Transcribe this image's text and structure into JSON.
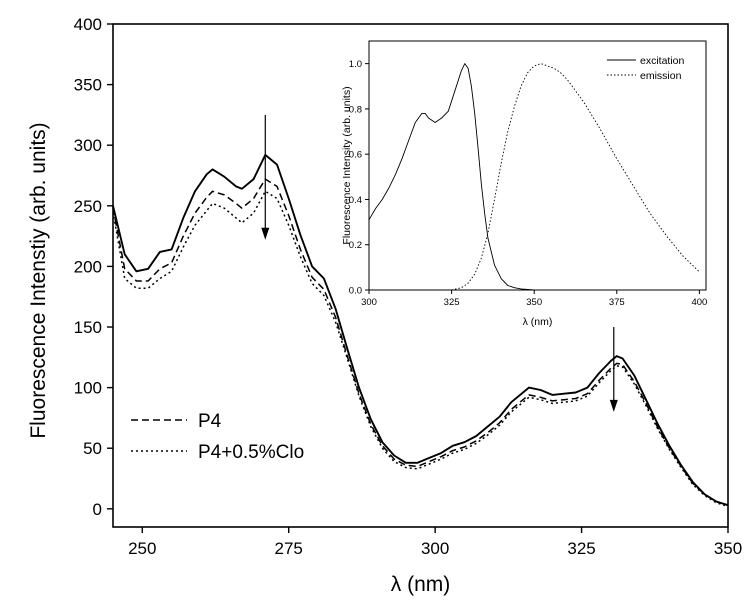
{
  "chart_data": [
    {
      "type": "line",
      "title": "",
      "xlabel": "λ (nm)",
      "ylabel": "Fluorescence Intenstiy (arb. units)",
      "xlim": [
        245,
        350
      ],
      "ylim": [
        -15,
        400
      ],
      "xticks": [
        250,
        275,
        300,
        325,
        350
      ],
      "yticks": [
        0,
        50,
        100,
        150,
        200,
        250,
        300,
        350,
        400
      ],
      "grid": false,
      "legend_position": "lower-left",
      "x": [
        245,
        247,
        249,
        251,
        253,
        255,
        257,
        259,
        261,
        262,
        264,
        266,
        267,
        269,
        271,
        273,
        275,
        277,
        279,
        281,
        283,
        285,
        287,
        289,
        291,
        293,
        295,
        297,
        299,
        301,
        303,
        305,
        307,
        309,
        311,
        313,
        315,
        316,
        318,
        320,
        322,
        324,
        326,
        328,
        330,
        331,
        332,
        334,
        336,
        338,
        340,
        342,
        344,
        346,
        348,
        350
      ],
      "series": [
        {
          "name": "",
          "style": "solid",
          "values": [
            250,
            210,
            196,
            198,
            212,
            214,
            240,
            262,
            276,
            280,
            274,
            266,
            264,
            272,
            292,
            284,
            256,
            226,
            200,
            190,
            165,
            132,
            100,
            74,
            55,
            44,
            38,
            38,
            42,
            46,
            52,
            55,
            60,
            68,
            76,
            88,
            96,
            100,
            98,
            94,
            95,
            96,
            100,
            112,
            122,
            126,
            124,
            110,
            90,
            70,
            52,
            36,
            22,
            12,
            6,
            3
          ]
        },
        {
          "name": "P4",
          "style": "dashed",
          "values": [
            248,
            198,
            188,
            188,
            198,
            203,
            225,
            244,
            257,
            262,
            259,
            252,
            248,
            256,
            272,
            266,
            242,
            214,
            191,
            181,
            158,
            126,
            95,
            70,
            52,
            41,
            36,
            35,
            39,
            43,
            48,
            51,
            56,
            63,
            71,
            82,
            90,
            94,
            92,
            89,
            90,
            91,
            95,
            106,
            116,
            120,
            119,
            105,
            87,
            67,
            50,
            35,
            21,
            12,
            6,
            3
          ]
        },
        {
          "name": "P4+0.5%Clo",
          "style": "dotted",
          "values": [
            245,
            190,
            182,
            182,
            190,
            196,
            216,
            234,
            246,
            252,
            248,
            240,
            236,
            244,
            262,
            256,
            234,
            208,
            186,
            176,
            154,
            124,
            93,
            68,
            50,
            39,
            34,
            33,
            37,
            41,
            46,
            49,
            54,
            61,
            69,
            80,
            88,
            92,
            90,
            87,
            88,
            89,
            93,
            104,
            114,
            118,
            117,
            103,
            85,
            66,
            49,
            34,
            20,
            11,
            5,
            2
          ]
        }
      ],
      "annotations": [
        {
          "kind": "arrow-down",
          "x": 271,
          "y_from": 325,
          "y_to": 222
        },
        {
          "kind": "arrow-down",
          "x": 330.5,
          "y_from": 150,
          "y_to": 80
        }
      ]
    },
    {
      "type": "line",
      "title": "",
      "xlabel": "λ (nm)",
      "ylabel": "Fluorescence Intensity (arb. units)",
      "xlim": [
        300,
        402
      ],
      "ylim": [
        0,
        1.1
      ],
      "xticks": [
        300,
        325,
        350,
        375,
        400
      ],
      "yticks": [
        0.0,
        0.2,
        0.4,
        0.6,
        0.8,
        1.0
      ],
      "ytick_labels": [
        "0.0",
        "0.2",
        "0.4",
        "0.6",
        "0.8",
        "1.0"
      ],
      "grid": false,
      "legend_position": "top-right",
      "series": [
        {
          "name": "excitation",
          "style": "solid",
          "x": [
            300,
            302,
            304,
            306,
            308,
            310,
            312,
            314,
            316,
            317,
            318,
            320,
            322,
            324,
            326,
            328,
            329,
            330,
            331,
            332,
            333,
            334,
            335,
            336,
            338,
            340,
            342,
            344,
            346,
            348,
            350
          ],
          "values": [
            0.31,
            0.36,
            0.4,
            0.45,
            0.51,
            0.58,
            0.66,
            0.74,
            0.78,
            0.78,
            0.76,
            0.74,
            0.76,
            0.79,
            0.88,
            0.97,
            1.0,
            0.98,
            0.9,
            0.78,
            0.63,
            0.47,
            0.34,
            0.23,
            0.11,
            0.05,
            0.02,
            0.01,
            0.005,
            0.002,
            0.0
          ]
        },
        {
          "name": "emission",
          "style": "dotted",
          "x": [
            325,
            328,
            330,
            332,
            334,
            336,
            338,
            340,
            342,
            344,
            346,
            348,
            350,
            352,
            354,
            356,
            358,
            360,
            365,
            370,
            375,
            380,
            385,
            390,
            395,
            400
          ],
          "values": [
            0.0,
            0.01,
            0.03,
            0.07,
            0.14,
            0.25,
            0.4,
            0.56,
            0.7,
            0.81,
            0.9,
            0.96,
            0.99,
            1.0,
            0.99,
            0.98,
            0.96,
            0.93,
            0.83,
            0.71,
            0.58,
            0.46,
            0.34,
            0.24,
            0.15,
            0.08
          ]
        }
      ]
    }
  ]
}
